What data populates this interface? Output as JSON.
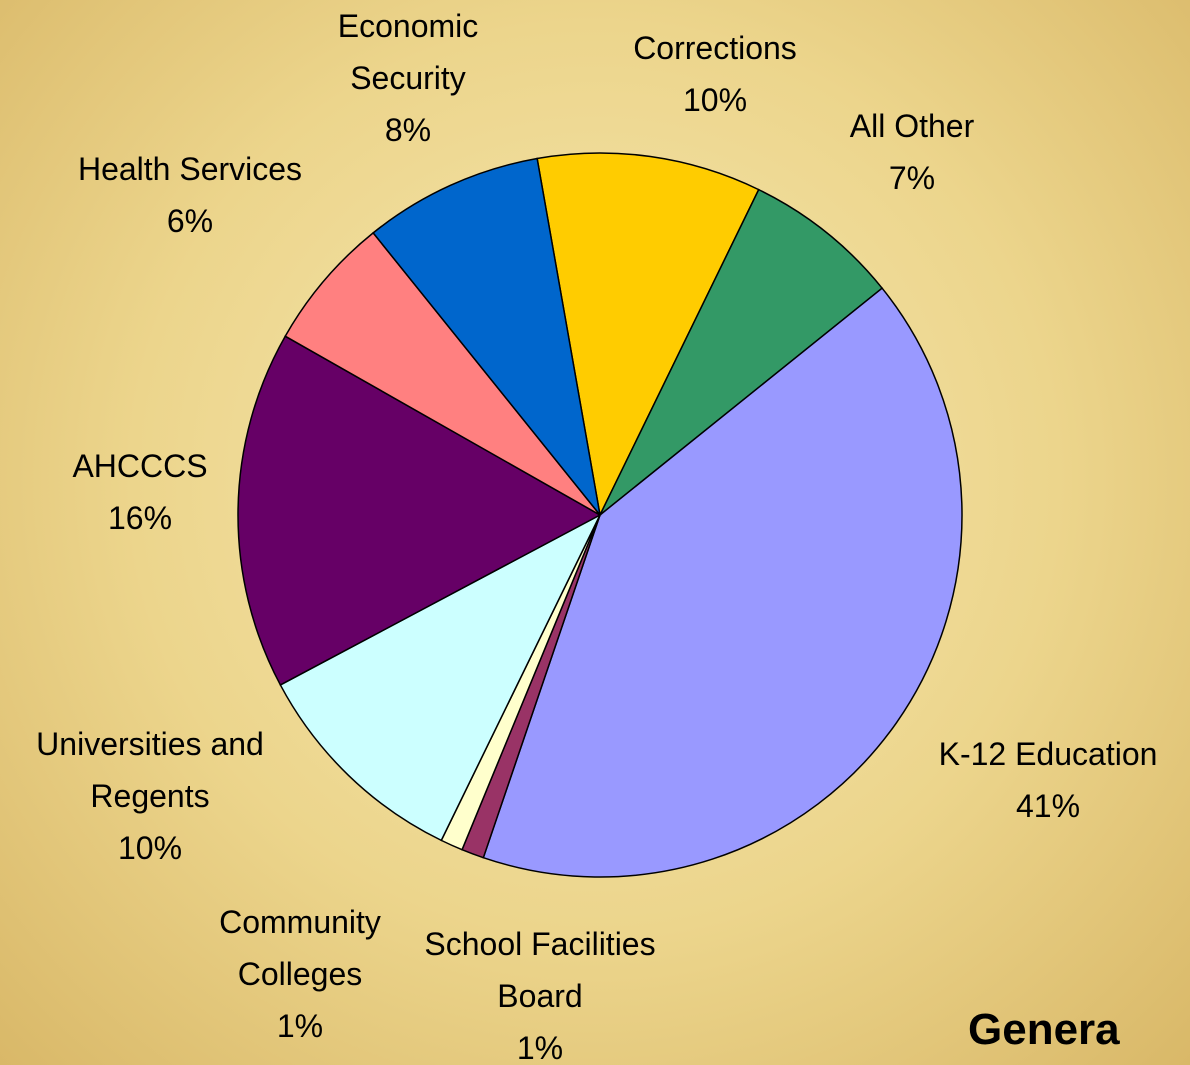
{
  "chart_data": {
    "type": "pie",
    "title": "Genera",
    "categories": [
      "Corrections",
      "All Other",
      "K-12 Education",
      "School Facilities Board",
      "Community Colleges",
      "Universities and Regents",
      "AHCCCS",
      "Health Services",
      "Economic Security"
    ],
    "values": [
      10,
      7,
      41,
      1,
      1,
      10,
      16,
      6,
      8
    ],
    "value_labels": [
      "10%",
      "7%",
      "41%",
      "1%",
      "1%",
      "10%",
      "16%",
      "6%",
      "8%"
    ],
    "colors": [
      "#ffcc00",
      "#339966",
      "#9999ff",
      "#993366",
      "#ffffcc",
      "#ccffff",
      "#660066",
      "#ff8080",
      "#0066cc"
    ]
  }
}
